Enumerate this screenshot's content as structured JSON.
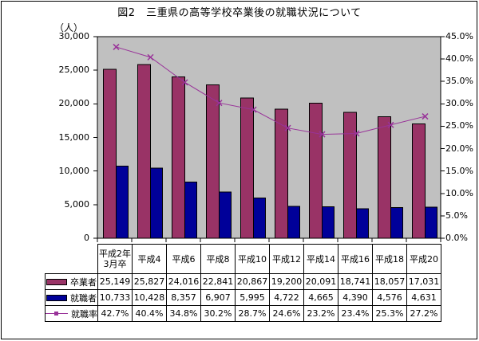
{
  "title": "図2　三重県の高等学校卒業後の就職状況について",
  "chart_data": {
    "type": "combo-bar-line",
    "title": "図2　三重県の高等学校卒業後の就職状況について",
    "plot_bg": "#c0c0c0",
    "grid": "off",
    "legend_position": "table-left",
    "categories": [
      "平成2年\n3月卒",
      "平成4",
      "平成6",
      "平成8",
      "平成10",
      "平成12",
      "平成14",
      "平成16",
      "平成18",
      "平成20"
    ],
    "left_axis": {
      "unit": "（人）",
      "min": 0,
      "max": 30000,
      "tick_step": 5000,
      "tick_labels": [
        "30,000",
        "25,000",
        "20,000",
        "15,000",
        "10,000",
        "5,000",
        "0"
      ]
    },
    "right_axis": {
      "min": 0,
      "max": 45,
      "tick_step": 5,
      "tick_labels": [
        "45.0%",
        "40.0%",
        "35.0%",
        "30.0%",
        "25.0%",
        "20.0%",
        "15.0%",
        "10.0%",
        "5.0%",
        "0.0%"
      ]
    },
    "series": [
      {
        "name": "卒業者",
        "type": "bar",
        "axis": "left",
        "color": "#993366",
        "values": [
          25149,
          25827,
          24016,
          22841,
          20867,
          19200,
          20091,
          18741,
          18057,
          17031
        ],
        "display": [
          "25,149",
          "25,827",
          "24,016",
          "22,841",
          "20,867",
          "19,200",
          "20,091",
          "18,741",
          "18,057",
          "17,031"
        ]
      },
      {
        "name": "就職者",
        "type": "bar",
        "axis": "left",
        "color": "#000099",
        "values": [
          10733,
          10428,
          8357,
          6907,
          5995,
          4722,
          4665,
          4390,
          4576,
          4631
        ],
        "display": [
          "10,733",
          "10,428",
          "8,357",
          "6,907",
          "5,995",
          "4,722",
          "4,665",
          "4,390",
          "4,576",
          "4,631"
        ]
      },
      {
        "name": "就職率",
        "type": "line",
        "axis": "right",
        "color": "#993399",
        "marker": "x",
        "values": [
          42.7,
          40.4,
          34.8,
          30.2,
          28.7,
          24.6,
          23.2,
          23.4,
          25.3,
          27.2
        ],
        "display": [
          "42.7%",
          "40.4%",
          "34.8%",
          "30.2%",
          "28.7%",
          "24.6%",
          "23.2%",
          "23.4%",
          "25.3%",
          "27.2%"
        ]
      }
    ]
  }
}
